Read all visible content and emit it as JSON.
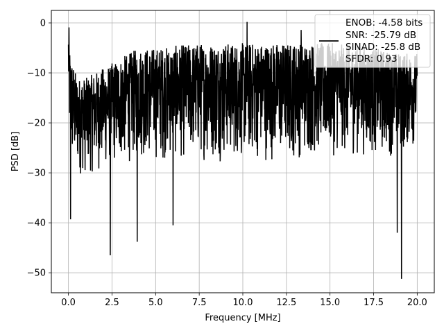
{
  "chart_data": {
    "type": "line",
    "title": "",
    "xlabel": "Frequency [MHz]",
    "ylabel": "PSD [dB]",
    "xlim": [
      -0.98,
      20.98
    ],
    "ylim": [
      -54,
      2.5
    ],
    "xticks": [
      0.0,
      2.5,
      5.0,
      7.5,
      10.0,
      12.5,
      15.0,
      17.5,
      20.0
    ],
    "xtick_labels": [
      "0.0",
      "2.5",
      "5.0",
      "7.5",
      "10.0",
      "12.5",
      "15.0",
      "17.5",
      "20.0"
    ],
    "yticks": [
      0,
      -10,
      -20,
      -30,
      -40,
      -50
    ],
    "ytick_labels": [
      "0",
      "−10",
      "−20",
      "−30",
      "−40",
      "−50"
    ],
    "grid": true,
    "legend_position": "top-right",
    "legend_lines": [
      "ENOB: -4.58 bits",
      "SNR: -25.79 dB",
      "SINAD: -25.8 dB",
      "SFDR: 0.93"
    ],
    "series": [
      {
        "color": "#000000",
        "description": "noisy PSD trace spanning 0 to 20 MHz, envelope roughly -5 to -30 dB",
        "envelope_x": [
          0.0,
          0.1,
          0.5,
          1.0,
          2.0,
          3.0,
          4.0,
          5.0,
          7.5,
          10.0,
          12.5,
          15.0,
          17.5,
          19.0,
          20.0
        ],
        "envelope_upper": [
          -1,
          -6,
          -11,
          -11,
          -9,
          -7,
          -5,
          -5,
          -4,
          -4,
          -4,
          -4,
          -5,
          -6,
          -6
        ],
        "envelope_lower": [
          -16,
          -30,
          -31,
          -31,
          -30,
          -29,
          -28,
          -28,
          -28,
          -28,
          -28,
          -27,
          -27,
          -27,
          -25
        ],
        "spikes": [
          {
            "x": 0.03,
            "y": -0.9
          },
          {
            "x": 0.12,
            "y": -39.3
          },
          {
            "x": 2.4,
            "y": -46.5
          },
          {
            "x": 3.95,
            "y": -43.8
          },
          {
            "x": 6.0,
            "y": -40.5
          },
          {
            "x": 10.25,
            "y": 0.2
          },
          {
            "x": 13.35,
            "y": -1.4
          },
          {
            "x": 18.85,
            "y": -42.0
          },
          {
            "x": 19.1,
            "y": -51.2
          }
        ]
      }
    ]
  }
}
